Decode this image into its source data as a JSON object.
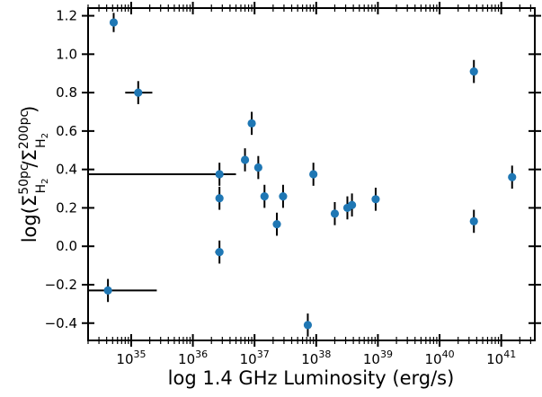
{
  "chart_data": {
    "type": "scatter",
    "xlabel": "log 1.4 GHz Luminosity (erg/s)",
    "ylabel": {
      "prefix": "log(Σ",
      "num_sup": "50pc",
      "num_sub": "H",
      "num_sub2": "2",
      "slash": "/Σ",
      "den_sup": "200pc",
      "den_sub": "H",
      "den_sub2": "2",
      "suffix": ")"
    },
    "x_scale": "log",
    "xlim": [
      2e+34,
      3.5e+41
    ],
    "ylim": [
      -0.49,
      1.24
    ],
    "x_ticks": [
      {
        "value": 1e+35,
        "base": "10",
        "exp": "35"
      },
      {
        "value": 1e+36,
        "base": "10",
        "exp": "36"
      },
      {
        "value": 1e+37,
        "base": "10",
        "exp": "37"
      },
      {
        "value": 1e+38,
        "base": "10",
        "exp": "38"
      },
      {
        "value": 1e+39,
        "base": "10",
        "exp": "39"
      },
      {
        "value": 1e+40,
        "base": "10",
        "exp": "40"
      },
      {
        "value": 1e+41,
        "base": "10",
        "exp": "41"
      }
    ],
    "y_ticks": [
      {
        "value": -0.4,
        "label": "−0.4"
      },
      {
        "value": -0.2,
        "label": "−0.2"
      },
      {
        "value": 0.0,
        "label": "0.0"
      },
      {
        "value": 0.2,
        "label": "0.2"
      },
      {
        "value": 0.4,
        "label": "0.4"
      },
      {
        "value": 0.6,
        "label": "0.6"
      },
      {
        "value": 0.8,
        "label": "0.8"
      },
      {
        "value": 1.0,
        "label": "1.0"
      },
      {
        "value": 1.2,
        "label": "1.2"
      }
    ],
    "grid": false,
    "marker_color": "#1f77b4",
    "errorbar_color": "#000000",
    "points": [
      {
        "x": 5.2e+34,
        "y": 1.165,
        "yerr": 0.05,
        "xerr_lo": null,
        "xerr_hi": null
      },
      {
        "x": 1.3e+35,
        "y": 0.8,
        "yerr": 0.06,
        "xerr_lo": 8e+34,
        "xerr_hi": 2.2e+35
      },
      {
        "x": 4.2e+34,
        "y": -0.23,
        "yerr": 0.06,
        "xerr_lo": 2e+34,
        "xerr_hi": 2.6e+35
      },
      {
        "x": 2.7e+36,
        "y": 0.375,
        "yerr": 0.06,
        "xerr_lo": 2e+34,
        "xerr_hi": 5e+36
      },
      {
        "x": 2.7e+36,
        "y": 0.25,
        "yerr": 0.06,
        "xerr_lo": null,
        "xerr_hi": null
      },
      {
        "x": 2.7e+36,
        "y": -0.03,
        "yerr": 0.06,
        "xerr_lo": 2.3e+36,
        "xerr_hi": 3.1e+36
      },
      {
        "x": 7e+36,
        "y": 0.45,
        "yerr": 0.06,
        "xerr_lo": null,
        "xerr_hi": null
      },
      {
        "x": 9e+36,
        "y": 0.64,
        "yerr": 0.06,
        "xerr_lo": null,
        "xerr_hi": null
      },
      {
        "x": 1.15e+37,
        "y": 0.41,
        "yerr": 0.06,
        "xerr_lo": null,
        "xerr_hi": null
      },
      {
        "x": 1.45e+37,
        "y": 0.26,
        "yerr": 0.06,
        "xerr_lo": null,
        "xerr_hi": null
      },
      {
        "x": 2.3e+37,
        "y": 0.115,
        "yerr": 0.06,
        "xerr_lo": null,
        "xerr_hi": null
      },
      {
        "x": 2.9e+37,
        "y": 0.26,
        "yerr": 0.06,
        "xerr_lo": null,
        "xerr_hi": null
      },
      {
        "x": 7.3e+37,
        "y": -0.41,
        "yerr": 0.06,
        "xerr_lo": null,
        "xerr_hi": null
      },
      {
        "x": 9e+37,
        "y": 0.375,
        "yerr": 0.06,
        "xerr_lo": null,
        "xerr_hi": null
      },
      {
        "x": 2e+38,
        "y": 0.17,
        "yerr": 0.06,
        "xerr_lo": null,
        "xerr_hi": null
      },
      {
        "x": 3.2e+38,
        "y": 0.2,
        "yerr": 0.06,
        "xerr_lo": null,
        "xerr_hi": null
      },
      {
        "x": 3.8e+38,
        "y": 0.215,
        "yerr": 0.06,
        "xerr_lo": null,
        "xerr_hi": null
      },
      {
        "x": 9.2e+38,
        "y": 0.245,
        "yerr": 0.06,
        "xerr_lo": null,
        "xerr_hi": null
      },
      {
        "x": 3.6e+40,
        "y": 0.91,
        "yerr": 0.06,
        "xerr_lo": null,
        "xerr_hi": null
      },
      {
        "x": 3.6e+40,
        "y": 0.13,
        "yerr": 0.06,
        "xerr_lo": null,
        "xerr_hi": null
      },
      {
        "x": 1.5e+41,
        "y": 0.36,
        "yerr": 0.06,
        "xerr_lo": null,
        "xerr_hi": null
      }
    ]
  }
}
